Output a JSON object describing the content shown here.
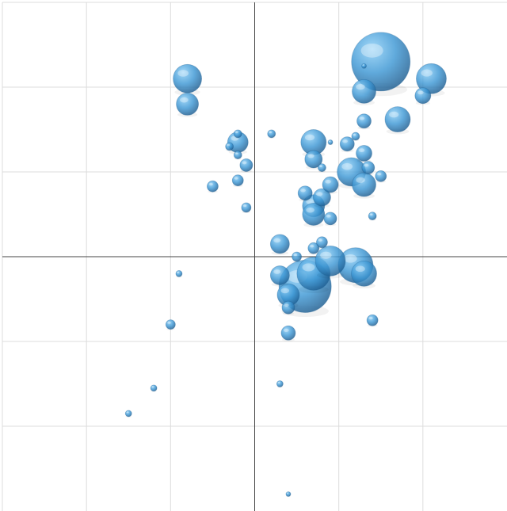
{
  "colors": {
    "bubble_light": "#8fd0f7",
    "bubble_mid": "#3d97d4",
    "bubble_dark": "#1e5f93",
    "grid": "#dcdcdc",
    "axis": "#444444"
  },
  "chart_data": {
    "type": "scatter",
    "title": "",
    "xlabel": "",
    "ylabel": "",
    "xlim": [
      -3,
      3
    ],
    "ylim": [
      -3,
      3
    ],
    "grid": true,
    "x_gridlines": [
      -2,
      -1,
      0,
      1,
      2
    ],
    "y_gridlines": [
      -2,
      -1,
      0,
      1,
      2
    ],
    "legend": "none",
    "points": [
      {
        "x": 1.5,
        "y": 2.3,
        "size": 37
      },
      {
        "x": 2.1,
        "y": 2.1,
        "size": 19
      },
      {
        "x": 2.0,
        "y": 1.9,
        "size": 10
      },
      {
        "x": 1.3,
        "y": 1.95,
        "size": 15
      },
      {
        "x": 1.3,
        "y": 2.25,
        "size": 3
      },
      {
        "x": 1.3,
        "y": 1.6,
        "size": 9
      },
      {
        "x": 1.7,
        "y": 1.62,
        "size": 16
      },
      {
        "x": -0.8,
        "y": 2.1,
        "size": 18
      },
      {
        "x": -0.8,
        "y": 1.8,
        "size": 14
      },
      {
        "x": -0.2,
        "y": 1.45,
        "size": 5
      },
      {
        "x": -0.2,
        "y": 1.35,
        "size": 13
      },
      {
        "x": -0.3,
        "y": 1.3,
        "size": 5
      },
      {
        "x": -0.2,
        "y": 1.2,
        "size": 5
      },
      {
        "x": -0.1,
        "y": 1.08,
        "size": 8
      },
      {
        "x": -0.2,
        "y": 0.9,
        "size": 7
      },
      {
        "x": -0.5,
        "y": 0.83,
        "size": 7
      },
      {
        "x": -0.1,
        "y": 0.58,
        "size": 6
      },
      {
        "x": 0.2,
        "y": 1.45,
        "size": 5
      },
      {
        "x": 0.7,
        "y": 1.35,
        "size": 16
      },
      {
        "x": 0.7,
        "y": 1.15,
        "size": 11
      },
      {
        "x": 0.9,
        "y": 1.35,
        "size": 3
      },
      {
        "x": 1.1,
        "y": 1.33,
        "size": 9
      },
      {
        "x": 1.2,
        "y": 1.42,
        "size": 5
      },
      {
        "x": 1.3,
        "y": 1.22,
        "size": 10
      },
      {
        "x": 0.8,
        "y": 1.05,
        "size": 5
      },
      {
        "x": 1.15,
        "y": 1.0,
        "size": 18
      },
      {
        "x": 1.35,
        "y": 1.05,
        "size": 8
      },
      {
        "x": 1.5,
        "y": 0.95,
        "size": 7
      },
      {
        "x": 1.3,
        "y": 0.85,
        "size": 15
      },
      {
        "x": 0.9,
        "y": 0.85,
        "size": 10
      },
      {
        "x": 0.6,
        "y": 0.75,
        "size": 9
      },
      {
        "x": 0.8,
        "y": 0.7,
        "size": 11
      },
      {
        "x": 0.7,
        "y": 0.6,
        "size": 14
      },
      {
        "x": 0.7,
        "y": 0.5,
        "size": 14
      },
      {
        "x": 0.9,
        "y": 0.45,
        "size": 8
      },
      {
        "x": 1.4,
        "y": 0.48,
        "size": 5
      },
      {
        "x": 0.3,
        "y": 0.15,
        "size": 12
      },
      {
        "x": 0.5,
        "y": 0.0,
        "size": 6
      },
      {
        "x": 0.7,
        "y": 0.1,
        "size": 7
      },
      {
        "x": 0.8,
        "y": 0.17,
        "size": 7
      },
      {
        "x": 0.9,
        "y": -0.05,
        "size": 19
      },
      {
        "x": 1.2,
        "y": -0.1,
        "size": 22
      },
      {
        "x": 1.3,
        "y": -0.2,
        "size": 16
      },
      {
        "x": 0.3,
        "y": -0.22,
        "size": 12
      },
      {
        "x": 0.7,
        "y": -0.2,
        "size": 21
      },
      {
        "x": 0.6,
        "y": -0.35,
        "size": 33
      },
      {
        "x": 0.4,
        "y": -0.45,
        "size": 14
      },
      {
        "x": 0.4,
        "y": -0.6,
        "size": 8
      },
      {
        "x": 0.4,
        "y": -0.9,
        "size": 9
      },
      {
        "x": 1.4,
        "y": -0.75,
        "size": 7
      },
      {
        "x": -0.9,
        "y": -0.2,
        "size": 4
      },
      {
        "x": -1.0,
        "y": -0.8,
        "size": 6
      },
      {
        "x": -1.2,
        "y": -1.55,
        "size": 4
      },
      {
        "x": -1.5,
        "y": -1.85,
        "size": 4
      },
      {
        "x": 0.3,
        "y": -1.5,
        "size": 4
      },
      {
        "x": 0.4,
        "y": -2.8,
        "size": 3
      }
    ]
  }
}
